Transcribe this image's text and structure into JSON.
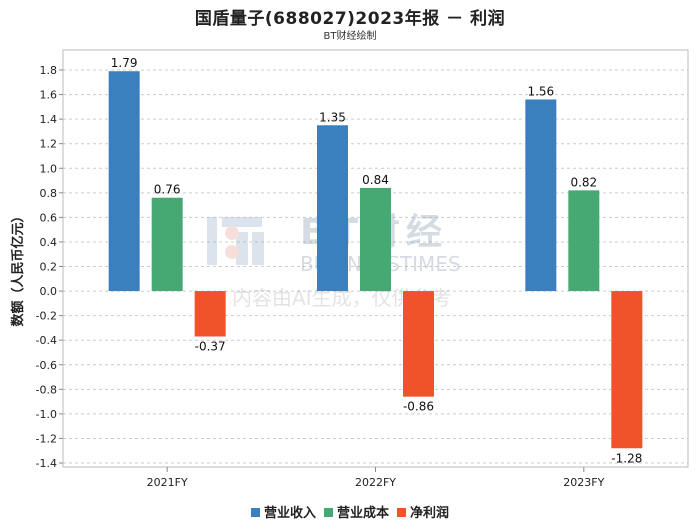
{
  "chart_data": {
    "type": "bar",
    "title": "国盾量子(688027)2023年报 － 利润",
    "subtitle": "BT财经绘制",
    "ylabel": "数额（人民币亿元）",
    "xlabel": "",
    "categories": [
      "2021FY",
      "2022FY",
      "2023FY"
    ],
    "ylim": [
      -1.4,
      1.8
    ],
    "yticks": [
      "1.8",
      "1.6",
      "1.4",
      "1.2",
      "1.0",
      "0.8",
      "0.6",
      "0.4",
      "0.2",
      "0.0",
      "-0.2",
      "-0.4",
      "-0.6",
      "-0.8",
      "-1.0",
      "-1.2",
      "-1.4"
    ],
    "grid": true,
    "legend_position": "bottom",
    "series": [
      {
        "name": "营业收入",
        "color": "#3a80bf",
        "values": [
          1.79,
          1.35,
          1.56
        ],
        "labels": [
          "1.79",
          "1.35",
          "1.56"
        ]
      },
      {
        "name": "营业成本",
        "color": "#46a872",
        "values": [
          0.76,
          0.84,
          0.82
        ],
        "labels": [
          "0.76",
          "0.84",
          "0.82"
        ]
      },
      {
        "name": "净利润",
        "color": "#f0532a",
        "values": [
          -0.37,
          -0.86,
          -1.28
        ],
        "labels": [
          "-0.37",
          "-0.86",
          "-1.28"
        ]
      }
    ],
    "watermark": {
      "logo_text": "BT财经",
      "logo_subtext": "BUSINESSTIMES",
      "note": "内容由AI生成，仅供参考"
    }
  }
}
